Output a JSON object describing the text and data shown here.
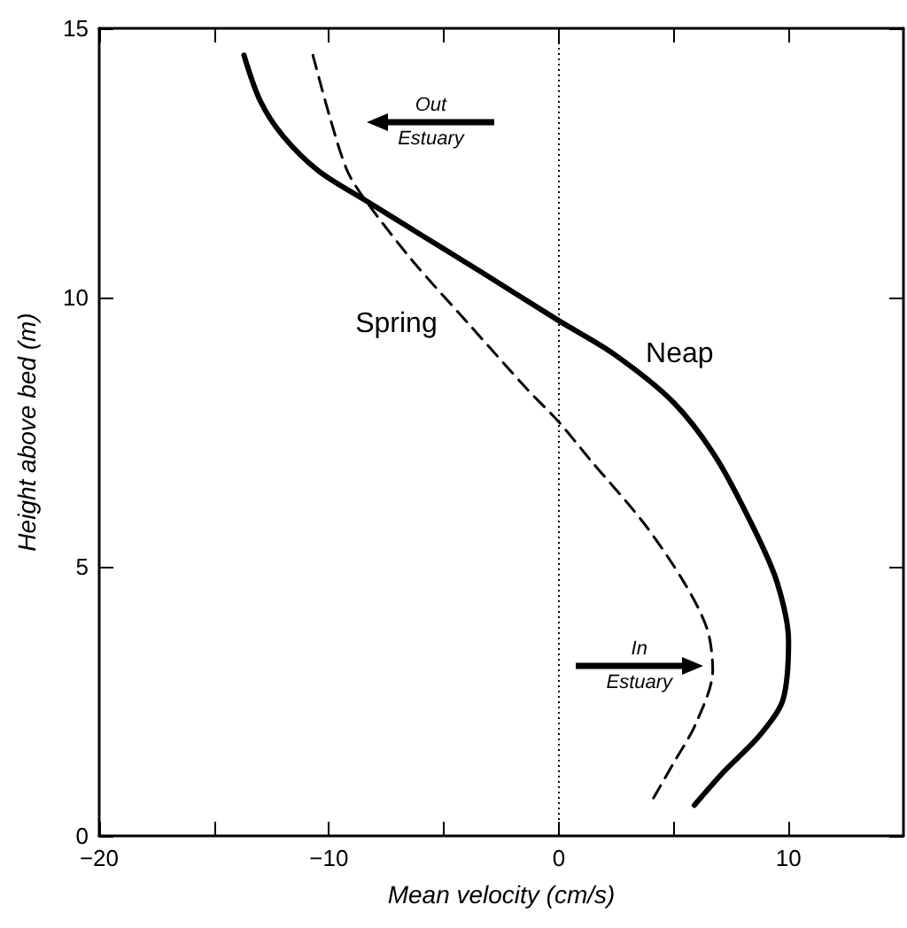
{
  "chart_data": {
    "type": "line",
    "xlabel": "Mean velocity (cm/s)",
    "ylabel": "Height above bed (m)",
    "xlim": [
      -20,
      15
    ],
    "xticks": [
      {
        "value": -20,
        "label": "−20"
      },
      {
        "value": -15,
        "label": null
      },
      {
        "value": -10,
        "label": "−10"
      },
      {
        "value": -5,
        "label": null
      },
      0,
      {
        "value": 5,
        "label": null
      },
      10
    ],
    "ylim": [
      0,
      15
    ],
    "yticks": [
      0,
      5,
      10,
      15
    ],
    "grid": false,
    "legend": false,
    "ref_lines": [
      {
        "axis": "x",
        "value": 0,
        "line_style": "dotted",
        "color": "#000000"
      }
    ],
    "annotations": [
      "Out Estuary",
      "In Estuary"
    ],
    "series": [
      {
        "name": "Neap",
        "color": "#000000",
        "line_style": "solid",
        "x": [
          -13.7,
          -13.0,
          -12.0,
          -10.45,
          -8.4,
          -5.9,
          -3.4,
          0,
          2.4,
          4.95,
          6.84,
          8.5,
          9.5,
          10.0,
          9.75,
          8.73,
          7.2,
          5.9
        ],
        "values": [
          14.5,
          13.66,
          13.0,
          12.35,
          11.8,
          11.14,
          10.48,
          9.57,
          8.95,
          8.07,
          7.03,
          5.7,
          4.71,
          3.62,
          2.52,
          1.86,
          1.2,
          0.57
        ]
      },
      {
        "name": "Spring",
        "color": "#000000",
        "line_style": "dashed",
        "x": [
          -10.7,
          -9.95,
          -9.2,
          -8.4,
          -6.4,
          -3.9,
          -1.36,
          0,
          1.4,
          3.7,
          5.45,
          6.46,
          6.7,
          5.96,
          4.95,
          3.94
        ],
        "values": [
          14.5,
          13.33,
          12.35,
          11.8,
          10.7,
          9.5,
          8.29,
          7.69,
          6.97,
          5.81,
          4.71,
          3.84,
          3.07,
          2.08,
          1.32,
          0.57
        ]
      }
    ]
  }
}
